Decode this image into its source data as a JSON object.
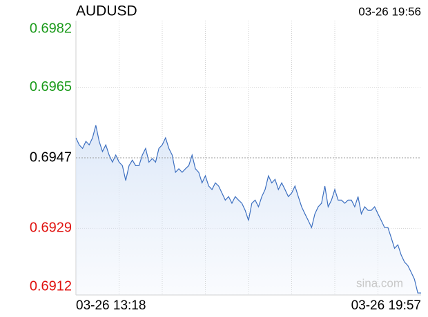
{
  "chart_data": {
    "type": "line",
    "title": "AUDUSD",
    "timestamp": "03-26 19:56",
    "watermark": "sina.com",
    "x_labels": [
      "03-26 13:18",
      "03-26 19:57"
    ],
    "ylim": [
      0.6912,
      0.6982
    ],
    "yticks": [
      0.6982,
      0.6965,
      0.6947,
      0.6929,
      0.6912
    ],
    "reference": 0.6947,
    "up_color": "#1a9a1a",
    "down_color": "#e0120f",
    "flat_color": "#000000",
    "color": "#3c6fc0",
    "fill": "#dde8f8",
    "grid": true,
    "values": [
      0.69521,
      0.69503,
      0.69494,
      0.69512,
      0.69503,
      0.69521,
      0.69553,
      0.69512,
      0.69486,
      0.69503,
      0.69477,
      0.69459,
      0.69477,
      0.69459,
      0.6945,
      0.69412,
      0.6945,
      0.69464,
      0.6945,
      0.6945,
      0.69477,
      0.69494,
      0.69459,
      0.69468,
      0.69459,
      0.69494,
      0.69503,
      0.69521,
      0.69494,
      0.69477,
      0.69433,
      0.69442,
      0.69433,
      0.69442,
      0.6945,
      0.69477,
      0.69442,
      0.69433,
      0.69406,
      0.69424,
      0.69398,
      0.69389,
      0.69406,
      0.69398,
      0.6938,
      0.69362,
      0.69371,
      0.69354,
      0.69371,
      0.69362,
      0.69354,
      0.69336,
      0.6931,
      0.69354,
      0.69362,
      0.69345,
      0.69371,
      0.69389,
      0.69424,
      0.69406,
      0.69415,
      0.69389,
      0.69406,
      0.69389,
      0.69371,
      0.6938,
      0.69398,
      0.69371,
      0.69345,
      0.69327,
      0.6931,
      0.69292,
      0.69327,
      0.69345,
      0.69354,
      0.69398,
      0.69345,
      0.69362,
      0.69389,
      0.69362,
      0.69362,
      0.69354,
      0.69362,
      0.69362,
      0.69345,
      0.69371,
      0.69327,
      0.69345,
      0.69336,
      0.69336,
      0.69345,
      0.69327,
      0.6931,
      0.69292,
      0.69292,
      0.69266,
      0.69239,
      0.69248,
      0.69222,
      0.69204,
      0.69195,
      0.69178,
      0.6916,
      0.69125,
      0.69125
    ]
  }
}
